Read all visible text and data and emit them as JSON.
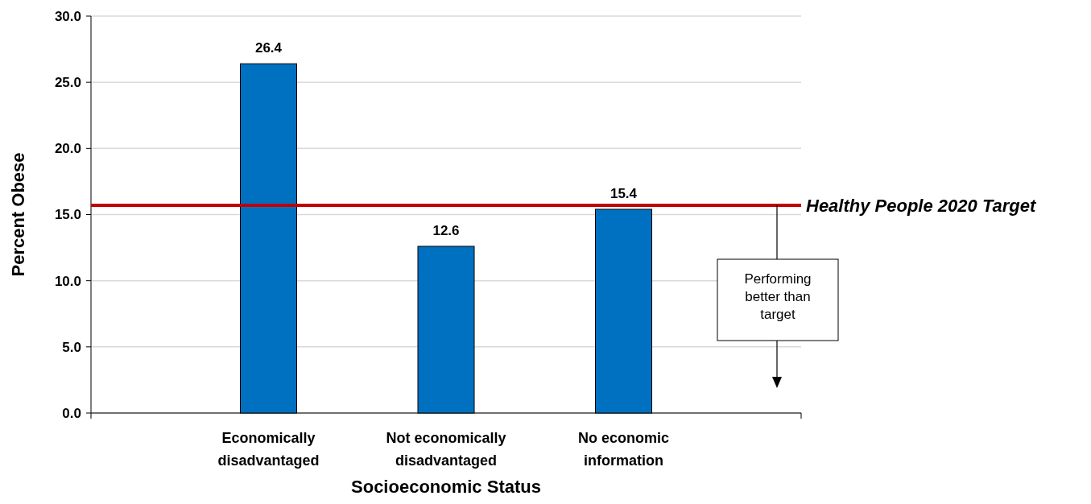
{
  "chart_data": {
    "type": "bar",
    "xlabel": "Socioeconomic Status",
    "ylabel": "Percent Obese",
    "categories": [
      null,
      "Economically disadvantaged",
      "Not economically disadvantaged",
      "No economic information",
      null
    ],
    "values": [
      null,
      26.4,
      12.6,
      15.4,
      null
    ],
    "color": "#0070c0",
    "ylim": [
      0,
      30
    ],
    "yticks": [
      {
        "value": 0,
        "label": "0.0"
      },
      {
        "value": 5,
        "label": "5.0"
      },
      {
        "value": 10,
        "label": "10.0"
      },
      {
        "value": 15,
        "label": "15.0"
      },
      {
        "value": 20,
        "label": "20.0"
      },
      {
        "value": 25,
        "label": "25.0"
      },
      {
        "value": 30,
        "label": "30.0"
      }
    ],
    "grid": "y",
    "data_labels": true,
    "ref_lines": [
      {
        "axis": "y",
        "value": 15.7,
        "label": "Healthy People 2020 Target",
        "color": "#c00000"
      }
    ],
    "annotations": [
      "Performing better than target"
    ]
  }
}
